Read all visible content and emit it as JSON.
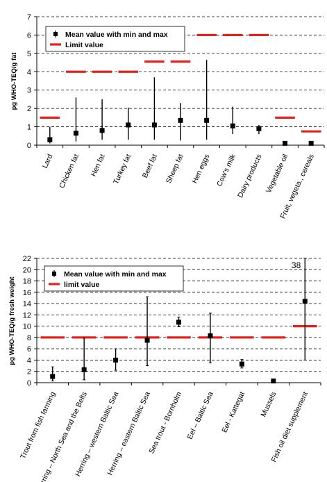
{
  "chart_data": [
    {
      "type": "range",
      "ylabel": "pg WHO-TEQ/g fat",
      "ylim": [
        0,
        7
      ],
      "yticks": [
        0,
        1,
        2,
        3,
        4,
        5,
        6,
        7
      ],
      "grid": "dashed horizontal",
      "legend": {
        "placement": "top-left",
        "mean_label": "Mean value with min and max",
        "limit_label": "Limit value"
      },
      "categories": [
        "Lard",
        "Chicken fat",
        "Hen fat",
        "Turkey fat",
        "Beef fat",
        "Sheep fat",
        "Hen eggs",
        "Cow's milk",
        "Dairy products",
        "Vegetable oil",
        "Fruit, vegeta., cereals"
      ],
      "series": [
        {
          "name": "Mean value with min and max",
          "mean": [
            0.3,
            0.65,
            0.8,
            1.1,
            1.1,
            1.35,
            1.35,
            1.05,
            0.9,
            0.1,
            0.1
          ],
          "min": [
            0.1,
            0.2,
            0.3,
            0.3,
            0.3,
            0.25,
            0.3,
            0.6,
            0.6,
            0.05,
            0.05
          ],
          "max": [
            1.0,
            2.6,
            2.5,
            2.05,
            3.7,
            2.3,
            4.65,
            2.1,
            1.1,
            0.15,
            0.15
          ]
        },
        {
          "name": "Limit value",
          "values": [
            1.5,
            4,
            4,
            4,
            4.55,
            4.55,
            6,
            6,
            6,
            1.5,
            0.75
          ]
        }
      ],
      "colors": {
        "mean": "#000000",
        "limit": "#e8201c"
      }
    },
    {
      "type": "range",
      "ylabel": "pg WHO-TEQ/g fresh weight",
      "ylim": [
        0,
        22
      ],
      "yticks": [
        0,
        2,
        4,
        6,
        8,
        10,
        12,
        14,
        16,
        18,
        20,
        22
      ],
      "grid": "dashed horizontal",
      "legend": {
        "placement": "top-left",
        "mean_label": "Mean value with min and max",
        "limit_label": "limit value"
      },
      "categories": [
        "Trout from fish farming",
        "Herring – North Sea and the Belts",
        "Herring – western Baltic Sea",
        "Herring – eastern Baltic Sea",
        "Sea trout - Bornholm",
        "Eel – Baltic Sea",
        "Eel - Kattegat",
        "Mussels",
        "Fish oil diet supplement"
      ],
      "series": [
        {
          "name": "Mean value with min and max",
          "mean": [
            1.1,
            2.3,
            4.0,
            7.5,
            10.7,
            8.3,
            3.3,
            0.3,
            14.4
          ],
          "min": [
            0.3,
            0.5,
            2.2,
            3.0,
            9.9,
            3.5,
            2.6,
            0.2,
            4.0
          ],
          "max": [
            2.8,
            7.9,
            6.0,
            15.2,
            11.6,
            12.3,
            4.1,
            0.4,
            38
          ]
        },
        {
          "name": "limit value",
          "values": [
            8,
            8,
            8,
            8,
            8,
            8,
            8,
            8,
            10
          ]
        }
      ],
      "annotations": [
        {
          "text": "38"
        }
      ],
      "colors": {
        "mean": "#000000",
        "limit": "#e8201c"
      }
    }
  ]
}
